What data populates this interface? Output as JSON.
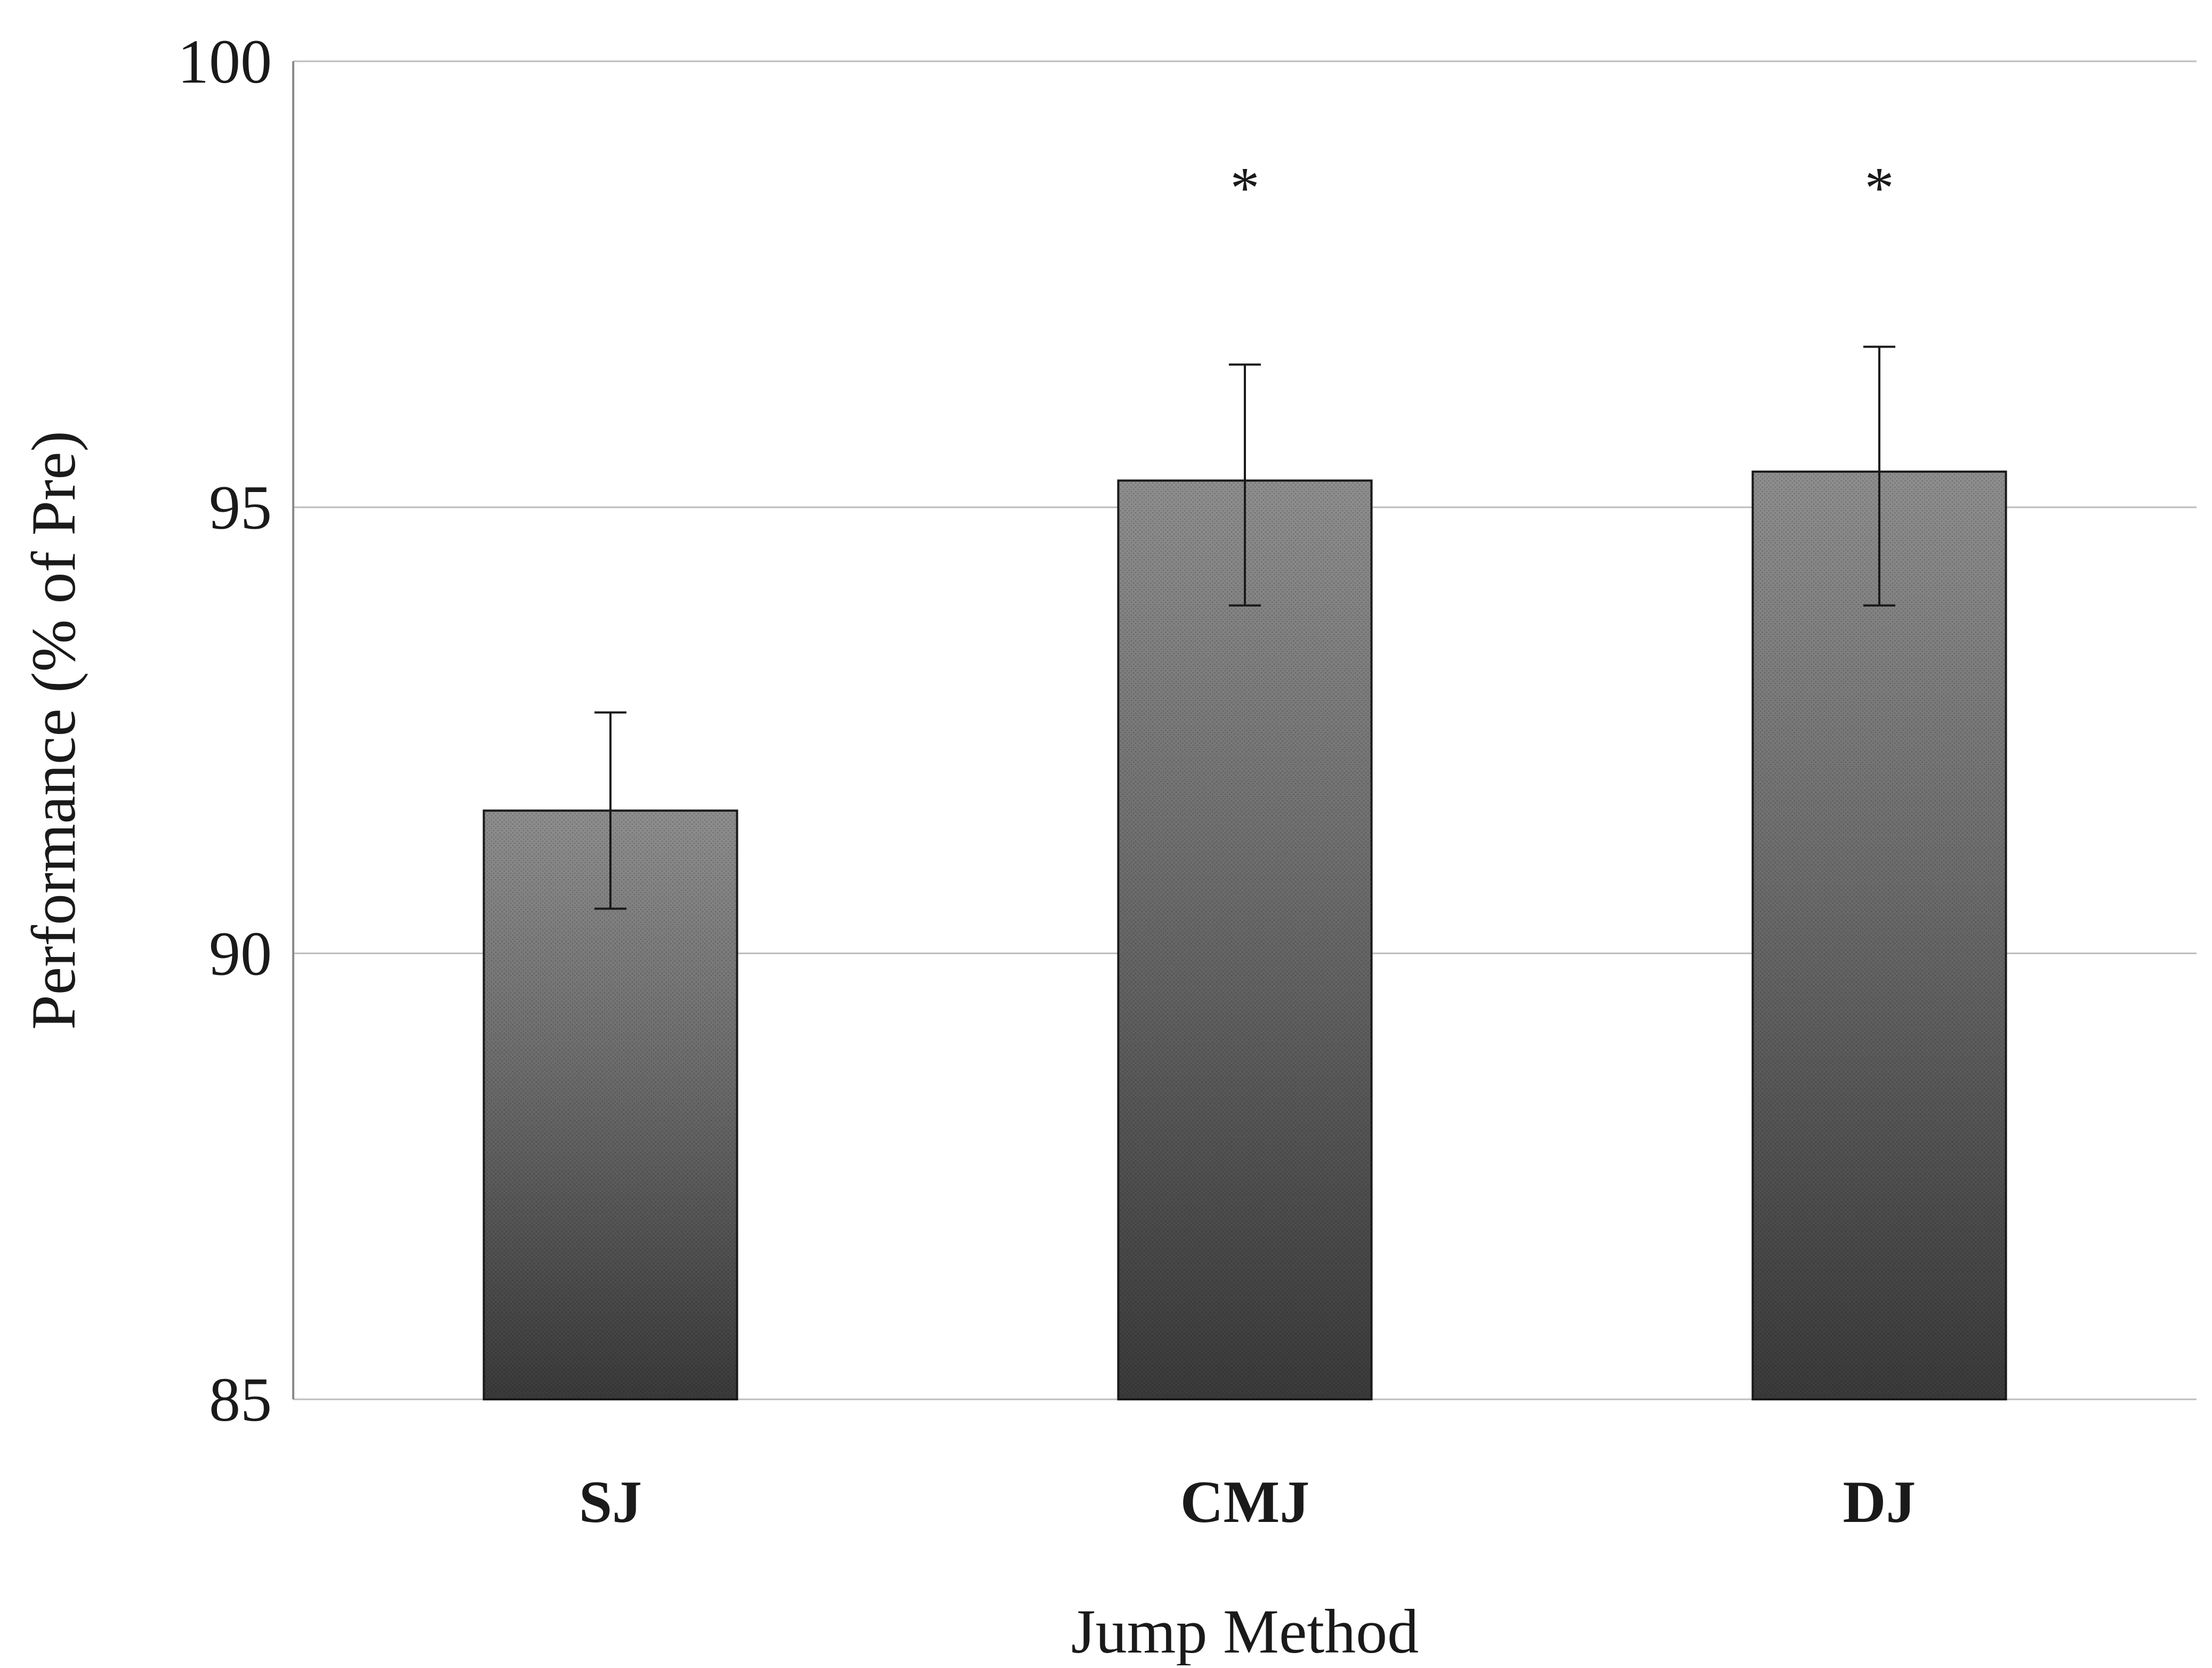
{
  "chart_data": {
    "type": "bar",
    "categories": [
      "SJ",
      "CMJ",
      "DJ"
    ],
    "values": [
      91.6,
      95.3,
      95.4
    ],
    "error": [
      1.1,
      1.3,
      1.4
    ],
    "error_low": [
      1.1,
      1.4,
      1.5
    ],
    "significance": [
      "",
      "*",
      "*"
    ],
    "title": "",
    "xlabel": "Jump Method",
    "ylabel": "Performance (% of Pre)",
    "ylim": [
      85,
      100
    ],
    "yticks": [
      85,
      90,
      95,
      100
    ],
    "ytick_labels": [
      "85",
      "90",
      "95",
      "100"
    ],
    "grid": true,
    "legend": "none",
    "bar_color": "#6b6b6b",
    "bar_top_color": "#8e8e8e",
    "bar_bottom_color": "#3a3a3a",
    "grid_color": "#bdbdbd"
  }
}
